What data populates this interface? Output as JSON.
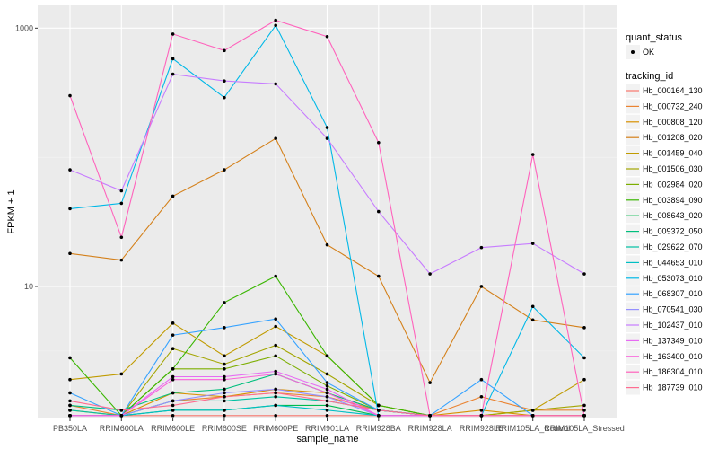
{
  "chart_data": {
    "type": "line",
    "title": "",
    "xlabel": "sample_name",
    "ylabel": "FPKM + 1",
    "y_scale": "log10",
    "ylim": [
      0.95,
      1500
    ],
    "y_ticks": [
      10,
      1000
    ],
    "y_tick_labels": [
      "10",
      "1000"
    ],
    "categories": [
      "PB350LA",
      "RRIM600LA",
      "RRIM600LE",
      "RRIM600SE",
      "RRIM600PE",
      "RRIM901LA",
      "RRIM928BA",
      "RRIM928LA",
      "RRIM928LE",
      "RRIM105LA_Control",
      "RRIM105LA_Stressed"
    ],
    "legend_quant": {
      "title": "quant_status",
      "entries": [
        "OK"
      ]
    },
    "legend_tracking": {
      "title": "tracking_id"
    },
    "series": [
      {
        "name": "Hb_000164_130",
        "color": "#F8766D",
        "values": [
          1.0,
          1.0,
          1.0,
          1.0,
          1.0,
          1.0,
          1.0,
          1.0,
          1.0,
          1.0,
          1.0
        ]
      },
      {
        "name": "Hb_000732_240",
        "color": "#EA8331",
        "values": [
          1.2,
          1.0,
          1.3,
          1.4,
          1.5,
          1.4,
          1.1,
          1.0,
          1.4,
          1.1,
          1.1
        ]
      },
      {
        "name": "Hb_000808_120",
        "color": "#D89000",
        "values": [
          1.1,
          1.0,
          1.5,
          1.4,
          1.6,
          1.5,
          1.1,
          1.0,
          1.1,
          1.0,
          1.0
        ]
      },
      {
        "name": "Hb_001208_020",
        "color": "#D4801A",
        "values": [
          18,
          16,
          50,
          80,
          140,
          21,
          12,
          1.8,
          10,
          5.5,
          4.8
        ]
      },
      {
        "name": "Hb_001459_040",
        "color": "#C09B00",
        "values": [
          1.9,
          2.1,
          5.2,
          2.9,
          4.9,
          2.9,
          1.2,
          1.0,
          1.0,
          1.1,
          1.9
        ]
      },
      {
        "name": "Hb_001506_030",
        "color": "#A3A500",
        "values": [
          1.0,
          1.0,
          3.3,
          2.5,
          3.5,
          2.1,
          1.2,
          1.0,
          1.0,
          1.1,
          1.2
        ]
      },
      {
        "name": "Hb_002984_020",
        "color": "#7CAE00",
        "values": [
          1.0,
          1.0,
          2.3,
          2.3,
          2.9,
          1.7,
          1.1,
          1.0,
          1.0,
          1.0,
          1.0
        ]
      },
      {
        "name": "Hb_003894_090",
        "color": "#39B600",
        "values": [
          2.8,
          1.0,
          2.3,
          7.5,
          12,
          2.9,
          1.2,
          1.0,
          1.0,
          1.0,
          1.0
        ]
      },
      {
        "name": "Hb_008643_020",
        "color": "#00BB4E",
        "values": [
          1.0,
          1.0,
          1.1,
          1.1,
          1.2,
          1.2,
          1.0,
          1.0,
          1.0,
          1.0,
          1.0
        ]
      },
      {
        "name": "Hb_009372_050",
        "color": "#00BF7D",
        "values": [
          1.2,
          1.1,
          1.5,
          1.6,
          2.1,
          1.5,
          1.1,
          1.0,
          1.0,
          1.0,
          1.0
        ]
      },
      {
        "name": "Hb_029622_070",
        "color": "#00C1A3",
        "values": [
          1.1,
          1.0,
          1.3,
          1.3,
          1.4,
          1.3,
          1.1,
          1.0,
          1.0,
          1.0,
          1.0
        ]
      },
      {
        "name": "Hb_044653_010",
        "color": "#00BFC4",
        "values": [
          1.0,
          1.0,
          1.1,
          1.1,
          1.2,
          1.1,
          1.0,
          1.0,
          1.0,
          1.0,
          1.0
        ]
      },
      {
        "name": "Hb_053073_010",
        "color": "#00B8E7",
        "values": [
          40,
          44,
          580,
          290,
          1050,
          170,
          1.0,
          1.0,
          1.0,
          7.0,
          2.8
        ]
      },
      {
        "name": "Hb_068307_010",
        "color": "#35A2FF",
        "values": [
          1.5,
          1.0,
          4.2,
          4.8,
          5.6,
          1.8,
          1.1,
          1.0,
          1.9,
          1.0,
          1.0
        ]
      },
      {
        "name": "Hb_070541_030",
        "color": "#9590FF",
        "values": [
          1.0,
          1.0,
          1.3,
          1.5,
          1.6,
          1.4,
          1.0,
          1.0,
          1.0,
          1.0,
          1.0
        ]
      },
      {
        "name": "Hb_102437_010",
        "color": "#C77CFF",
        "values": [
          80,
          55,
          440,
          390,
          370,
          140,
          38,
          12.5,
          20,
          21.5,
          12.5
        ]
      },
      {
        "name": "Hb_137349_010",
        "color": "#E76BF3",
        "values": [
          1.0,
          1.0,
          2.0,
          2.0,
          2.2,
          1.6,
          1.0,
          1.0,
          1.0,
          1.0,
          1.0
        ]
      },
      {
        "name": "Hb_163400_010",
        "color": "#FA62DB",
        "values": [
          1.0,
          1.0,
          1.9,
          1.9,
          2.1,
          1.5,
          1.0,
          1.0,
          1.0,
          1.0,
          1.0
        ]
      },
      {
        "name": "Hb_186304_010",
        "color": "#FF62BC",
        "values": [
          300,
          24,
          900,
          670,
          1150,
          860,
          130,
          1.0,
          1.0,
          105,
          1.0
        ]
      },
      {
        "name": "Hb_187739_010",
        "color": "#FF6C91",
        "values": [
          1.3,
          1.1,
          1.2,
          1.4,
          1.5,
          1.3,
          1.1,
          1.0,
          1.0,
          1.0,
          1.0
        ]
      }
    ]
  }
}
